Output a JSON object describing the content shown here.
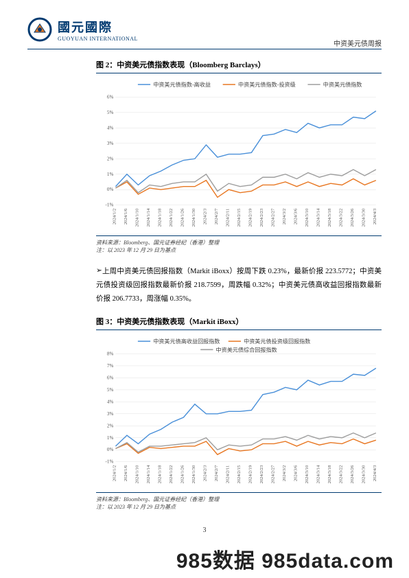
{
  "header": {
    "logo_cn": "國元國際",
    "logo_en": "GUOYUAN INTERNATIONAL",
    "right_text": "中资美元债周报"
  },
  "figure2": {
    "title": "图 2：中资美元债指数表现（Bloomberg Barclays）",
    "legend": [
      "中资美元债指数-高收益",
      "中资美元债指数-投资级",
      "中资美元债指数"
    ],
    "legend_colors": [
      "#4a90d9",
      "#e87722",
      "#9e9e9e"
    ],
    "y_ticks": [
      "-1%",
      "0%",
      "1%",
      "2%",
      "3%",
      "4%",
      "5%",
      "6%"
    ],
    "ylim": [
      -1,
      6
    ],
    "x_labels": [
      "2024/1/2",
      "2024/1/6",
      "2024/1/10",
      "2024/1/14",
      "2024/1/18",
      "2024/1/22",
      "2024/1/26",
      "2024/1/30",
      "2024/2/3",
      "2024/2/7",
      "2024/2/11",
      "2024/2/15",
      "2024/2/19",
      "2024/2/23",
      "2024/2/27",
      "2024/3/2",
      "2024/3/6",
      "2024/3/10",
      "2024/3/14",
      "2024/3/18",
      "2024/3/22",
      "2024/3/26",
      "2024/3/30",
      "2024/4/3"
    ],
    "series_hy": [
      0.2,
      1.0,
      0.3,
      0.9,
      1.2,
      1.6,
      1.9,
      2.0,
      2.9,
      2.1,
      2.3,
      2.3,
      2.4,
      3.5,
      3.6,
      3.9,
      3.7,
      4.3,
      4.0,
      4.2,
      4.2,
      4.7,
      4.6,
      5.1
    ],
    "series_ig": [
      0.1,
      0.5,
      -0.3,
      0.1,
      0.0,
      0.1,
      0.2,
      0.2,
      0.6,
      -0.5,
      0.0,
      -0.2,
      -0.1,
      0.3,
      0.3,
      0.5,
      0.2,
      0.5,
      0.2,
      0.4,
      0.3,
      0.7,
      0.3,
      0.6
    ],
    "series_all": [
      0.1,
      0.6,
      -0.2,
      0.3,
      0.2,
      0.4,
      0.5,
      0.5,
      1.0,
      -0.1,
      0.4,
      0.2,
      0.3,
      0.8,
      0.8,
      1.0,
      0.7,
      1.1,
      0.8,
      1.0,
      0.9,
      1.3,
      0.9,
      1.3
    ],
    "source": "资料来源：Bloomberg、国元证券经纪（香港）整理",
    "note": "注：以 2023 年 12 月 29 日为基点"
  },
  "paragraph": "上周中资美元债回报指数（Markit iBoxx）按周下跌 0.23%，最新价报 223.5772；中资美元债投资级回报指数最新价报 218.7599，周跌幅 0.32%；中资美元债高收益回报指数最新价报 206.7733，周涨幅 0.35%。",
  "figure3": {
    "title": "图 3：中资美元债指数表现（Markit iBoxx）",
    "legend": [
      "中资美元债高收益回报指数",
      "中资美元债投资级回报指数",
      "中资美元债综合回报指数"
    ],
    "legend_colors": [
      "#4a90d9",
      "#e87722",
      "#9e9e9e"
    ],
    "y_ticks": [
      "-1%",
      "0%",
      "1%",
      "2%",
      "3%",
      "4%",
      "5%",
      "6%",
      "7%",
      "8%"
    ],
    "ylim": [
      -1,
      8
    ],
    "x_labels": [
      "2024/1/2",
      "2024/1/6",
      "2024/1/10",
      "2024/1/14",
      "2024/1/18",
      "2024/1/22",
      "2024/1/26",
      "2024/1/30",
      "2024/2/3",
      "2024/2/7",
      "2024/2/11",
      "2024/2/15",
      "2024/2/19",
      "2024/2/23",
      "2024/2/27",
      "2024/3/2",
      "2024/3/6",
      "2024/3/10",
      "2024/3/14",
      "2024/3/18",
      "2024/3/22",
      "2024/3/26",
      "2024/3/30",
      "2024/4/3"
    ],
    "series_hy": [
      0.3,
      1.2,
      0.5,
      1.3,
      1.7,
      2.3,
      2.7,
      3.8,
      3.0,
      3.0,
      3.2,
      3.2,
      3.3,
      4.6,
      4.8,
      5.2,
      5.0,
      5.8,
      5.4,
      5.7,
      5.7,
      6.3,
      6.2,
      6.8
    ],
    "series_ig": [
      0.1,
      0.5,
      -0.3,
      0.2,
      0.1,
      0.2,
      0.3,
      0.3,
      0.7,
      -0.4,
      0.1,
      -0.1,
      0.0,
      0.5,
      0.5,
      0.7,
      0.3,
      0.7,
      0.4,
      0.6,
      0.5,
      0.9,
      0.5,
      0.8
    ],
    "series_all": [
      0.1,
      0.6,
      -0.2,
      0.3,
      0.3,
      0.4,
      0.5,
      0.6,
      1.0,
      0.0,
      0.4,
      0.3,
      0.4,
      0.9,
      0.9,
      1.1,
      0.8,
      1.2,
      0.9,
      1.1,
      1.0,
      1.4,
      1.0,
      1.4
    ],
    "source": "资料来源：Bloomberg、国元证券经纪（香港）整理",
    "note": "注：以 2023 年 12 月 29 日为基点"
  },
  "page_number": "3",
  "watermark": "985数据 985data.com"
}
